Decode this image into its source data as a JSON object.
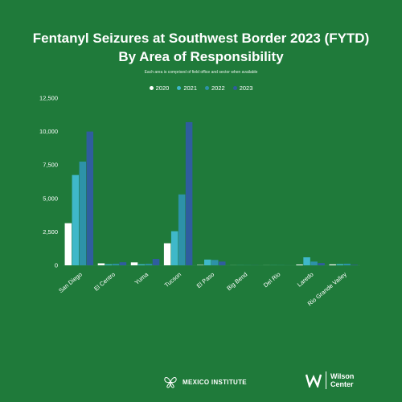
{
  "header": {
    "title_line1": "Fentanyl Seizures at Southwest Border 2023 (FYTD)",
    "title_line2": "By Area of Responsibility",
    "subtitle": "Each area is comprised of field office and sector when available"
  },
  "colors": {
    "background": "#1f7a3a",
    "s2020": "#ffffff",
    "s2021": "#3fb8c9",
    "s2022": "#2d92a8",
    "s2023": "#2f5d9e"
  },
  "chart_data": {
    "type": "bar",
    "categories": [
      "San Diego",
      "El Centro",
      "Yuma",
      "Tucson",
      "El Paso",
      "Big Bend",
      "Del Rio",
      "Laredo",
      "Rio Grande Valley"
    ],
    "series": [
      {
        "name": "2020",
        "values": [
          3150,
          150,
          220,
          1650,
          30,
          5,
          5,
          60,
          70
        ]
      },
      {
        "name": "2021",
        "values": [
          6750,
          80,
          80,
          2550,
          430,
          10,
          10,
          600,
          90
        ]
      },
      {
        "name": "2022",
        "values": [
          7750,
          110,
          110,
          5300,
          400,
          10,
          10,
          280,
          120
        ]
      },
      {
        "name": "2023",
        "values": [
          10000,
          230,
          480,
          10700,
          280,
          10,
          5,
          170,
          40
        ]
      }
    ],
    "yticks": [
      "0",
      "2,500",
      "5,000",
      "7,500",
      "10,000",
      "12,500"
    ],
    "ylim": [
      0,
      12500
    ],
    "grid": false,
    "legend": "top-center"
  },
  "footer": {
    "mexico_institute": "MEXICO INSTITUTE",
    "wilson_line1": "Wilson",
    "wilson_line2": "Center"
  }
}
